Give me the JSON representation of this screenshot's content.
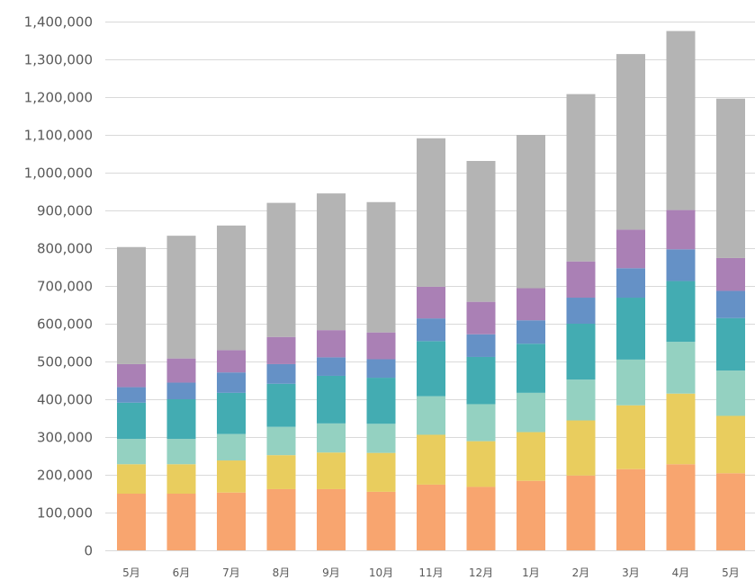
{
  "chart_data": {
    "type": "bar",
    "stacked": true,
    "grid": true,
    "legend": "none",
    "title": "",
    "xlabel": "",
    "ylabel": "",
    "ylim": [
      0,
      1400000
    ],
    "y_ticks": [
      0,
      100000,
      200000,
      300000,
      400000,
      500000,
      600000,
      700000,
      800000,
      900000,
      1000000,
      1100000,
      1200000,
      1300000,
      1400000
    ],
    "y_tick_labels": [
      "0",
      "100,000",
      "200,000",
      "300,000",
      "400,000",
      "500,000",
      "600,000",
      "700,000",
      "800,000",
      "900,000",
      "1,000,000",
      "1,100,000",
      "1,200,000",
      "1,300,000",
      "1,400,000"
    ],
    "categories": [
      "5月",
      "6月",
      "7月",
      "8月",
      "9月",
      "10月",
      "11月",
      "12月",
      "1月",
      "2月",
      "3月",
      "4月",
      "5月"
    ],
    "series": [
      {
        "color": "#F8A56F",
        "values": [
          150000,
          150000,
          153000,
          162000,
          162000,
          155000,
          174000,
          168000,
          184000,
          198000,
          215000,
          228000,
          204000
        ]
      },
      {
        "color": "#E9CD5E",
        "values": [
          78000,
          78000,
          85000,
          90000,
          97000,
          103000,
          132000,
          121000,
          129000,
          146000,
          169000,
          187000,
          152000
        ]
      },
      {
        "color": "#94D1C1",
        "values": [
          67000,
          67000,
          70000,
          75000,
          77000,
          77000,
          102000,
          98000,
          104000,
          108000,
          121000,
          137000,
          120000
        ]
      },
      {
        "color": "#43ACB2",
        "values": [
          96000,
          105000,
          109000,
          114000,
          126000,
          122000,
          146000,
          125000,
          130000,
          148000,
          164000,
          161000,
          139000
        ]
      },
      {
        "color": "#6591C6",
        "values": [
          41000,
          44000,
          54000,
          52000,
          49000,
          49000,
          60000,
          60000,
          62000,
          69000,
          78000,
          84000,
          72000
        ]
      },
      {
        "color": "#AA80B5",
        "values": [
          61000,
          64000,
          59000,
          72000,
          72000,
          71000,
          84000,
          86000,
          85000,
          96000,
          102000,
          104000,
          87000
        ]
      },
      {
        "color": "#B4B4B4",
        "values": [
          310000,
          325000,
          330000,
          355000,
          362000,
          345000,
          393000,
          373000,
          406000,
          443000,
          465000,
          474000,
          422000
        ]
      }
    ]
  }
}
